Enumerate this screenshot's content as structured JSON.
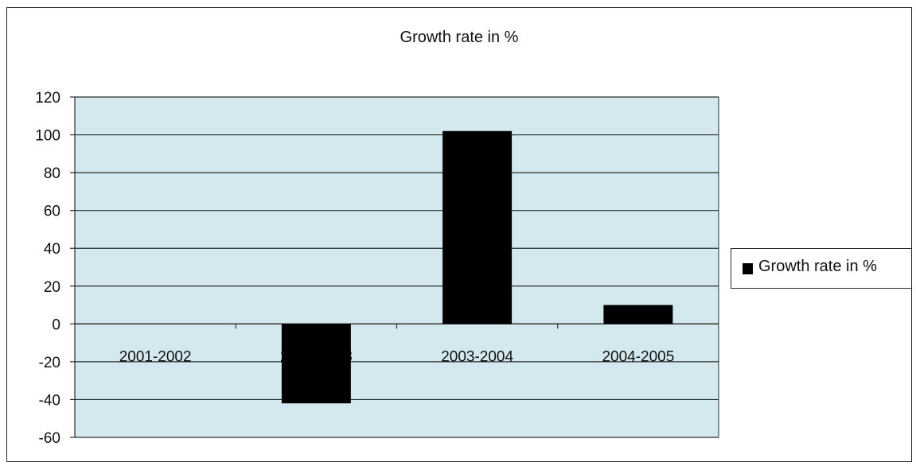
{
  "colors": {
    "plot_background": "#d3e9ef",
    "bar_fill": "#000000",
    "gridline": "#2b2b2b",
    "axis": "#2b2b2b"
  },
  "legend": {
    "label": "Growth rate in %",
    "swatch_color": "#000000"
  },
  "chart_data": {
    "type": "bar",
    "title": "Growth rate in %",
    "categories": [
      "2001-2002",
      "2002-2003",
      "2003-2004",
      "2004-2005"
    ],
    "series": [
      {
        "name": "Growth rate in %",
        "values": [
          0,
          -42,
          102,
          10
        ]
      }
    ],
    "xlabel": "",
    "ylabel": "",
    "ylim": [
      -60,
      120
    ],
    "yticks": [
      120,
      100,
      80,
      60,
      40,
      20,
      0,
      -20,
      -40,
      -60
    ],
    "grid": true,
    "legend_position": "right"
  }
}
